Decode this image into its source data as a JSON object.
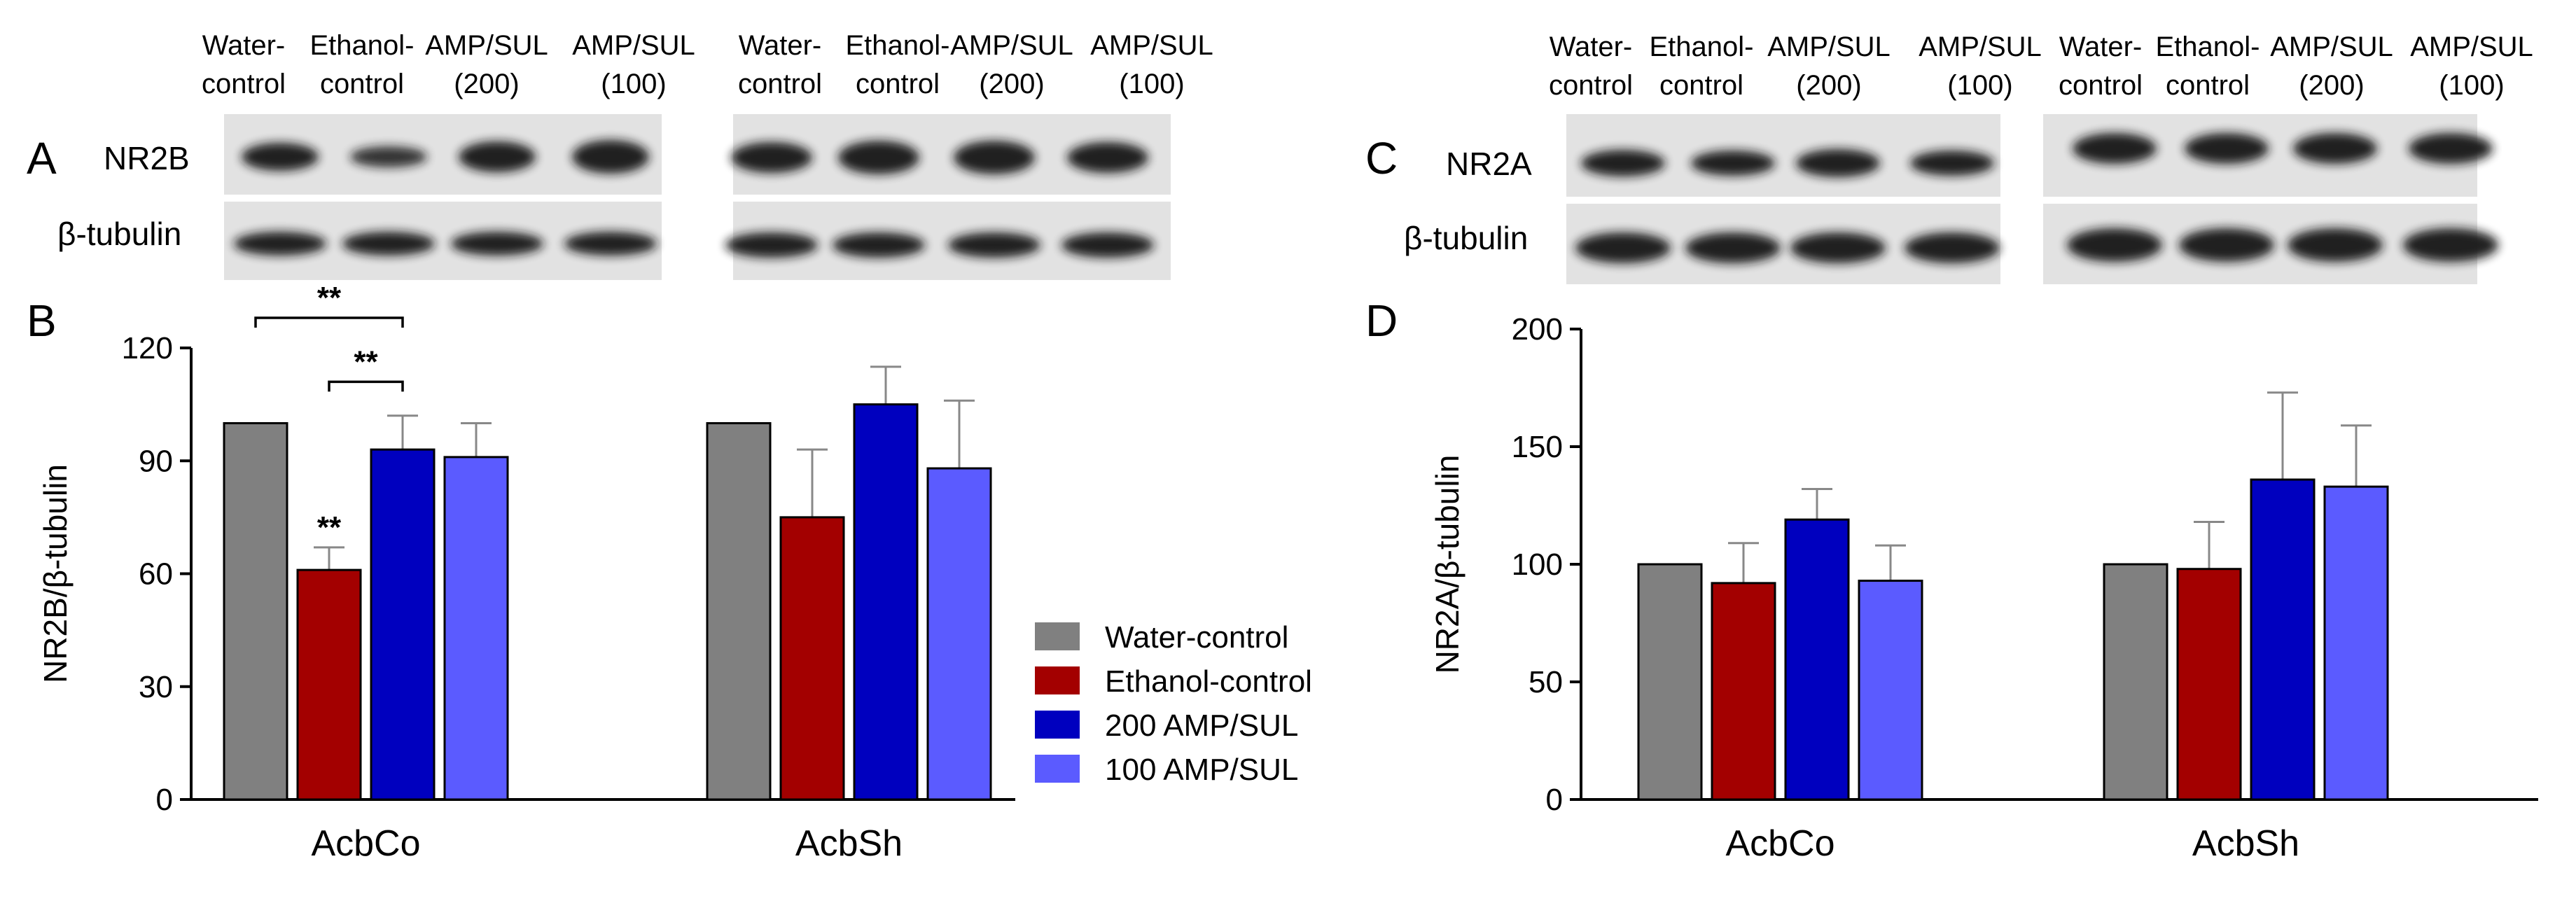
{
  "panels": {
    "A": {
      "letter": "A",
      "protein_label": "NR2B",
      "loading_label": "β-tubulin"
    },
    "C": {
      "letter": "C",
      "protein_label": "NR2A",
      "loading_label": "β-tubulin"
    },
    "B": {
      "letter": "B"
    },
    "D": {
      "letter": "D"
    }
  },
  "blot_lane_headers": [
    {
      "line1": "Water-",
      "line2": "control"
    },
    {
      "line1": "Ethanol-",
      "line2": "control"
    },
    {
      "line1": "AMP/SUL",
      "line2": "(200)"
    },
    {
      "line1": "AMP/SUL",
      "line2": "(100)"
    }
  ],
  "legend": [
    {
      "label": "Water-control",
      "color": "#808080"
    },
    {
      "label": "Ethanol-control",
      "color": "#a30000"
    },
    {
      "label": "200 AMP/SUL",
      "color": "#0000bf"
    },
    {
      "label": "100 AMP/SUL",
      "color": "#5b5bff"
    }
  ],
  "significance": {
    "marker": "**"
  },
  "chart_data": [
    {
      "type": "bar",
      "panel": "B",
      "categories": [
        "AcbCo",
        "AcbSh"
      ],
      "ylabel": "NR2B/β-tubulin",
      "ylim": [
        0,
        120
      ],
      "yticks": [
        0,
        30,
        60,
        90,
        120
      ],
      "series": [
        {
          "name": "Water-control",
          "values": [
            100,
            100
          ],
          "errors": [
            0,
            0
          ],
          "color": "#808080"
        },
        {
          "name": "Ethanol-control",
          "values": [
            61,
            75
          ],
          "errors": [
            6,
            18
          ],
          "color": "#a30000"
        },
        {
          "name": "200 AMP/SUL",
          "values": [
            93,
            105
          ],
          "errors": [
            9,
            10
          ],
          "color": "#0000bf"
        },
        {
          "name": "100 AMP/SUL",
          "values": [
            91,
            88
          ],
          "errors": [
            9,
            18
          ],
          "color": "#5b5bff"
        }
      ],
      "annotations": [
        {
          "text": "**",
          "category": "AcbCo",
          "series": "Ethanol-control",
          "type": "bar-star"
        },
        {
          "text": "**",
          "category": "AcbCo",
          "from_series": "Ethanol-control",
          "to_series": "200 AMP/SUL",
          "type": "bracket",
          "y": 111
        },
        {
          "text": "**",
          "category": "AcbCo",
          "from_series": "Water-control",
          "to_series": "200 AMP/SUL",
          "type": "bracket",
          "y": 128
        }
      ]
    },
    {
      "type": "bar",
      "panel": "D",
      "categories": [
        "AcbCo",
        "AcbSh"
      ],
      "ylabel": "NR2A/β-tubulin",
      "ylim": [
        0,
        200
      ],
      "yticks": [
        0,
        50,
        100,
        150,
        200
      ],
      "series": [
        {
          "name": "Water-control",
          "values": [
            100,
            100
          ],
          "errors": [
            0,
            0
          ],
          "color": "#808080"
        },
        {
          "name": "Ethanol-control",
          "values": [
            92,
            98
          ],
          "errors": [
            17,
            20
          ],
          "color": "#a30000"
        },
        {
          "name": "200 AMP/SUL",
          "values": [
            119,
            136
          ],
          "errors": [
            13,
            37
          ],
          "color": "#0000bf"
        },
        {
          "name": "100 AMP/SUL",
          "values": [
            93,
            133
          ],
          "errors": [
            15,
            26
          ],
          "color": "#5b5bff"
        }
      ]
    }
  ]
}
